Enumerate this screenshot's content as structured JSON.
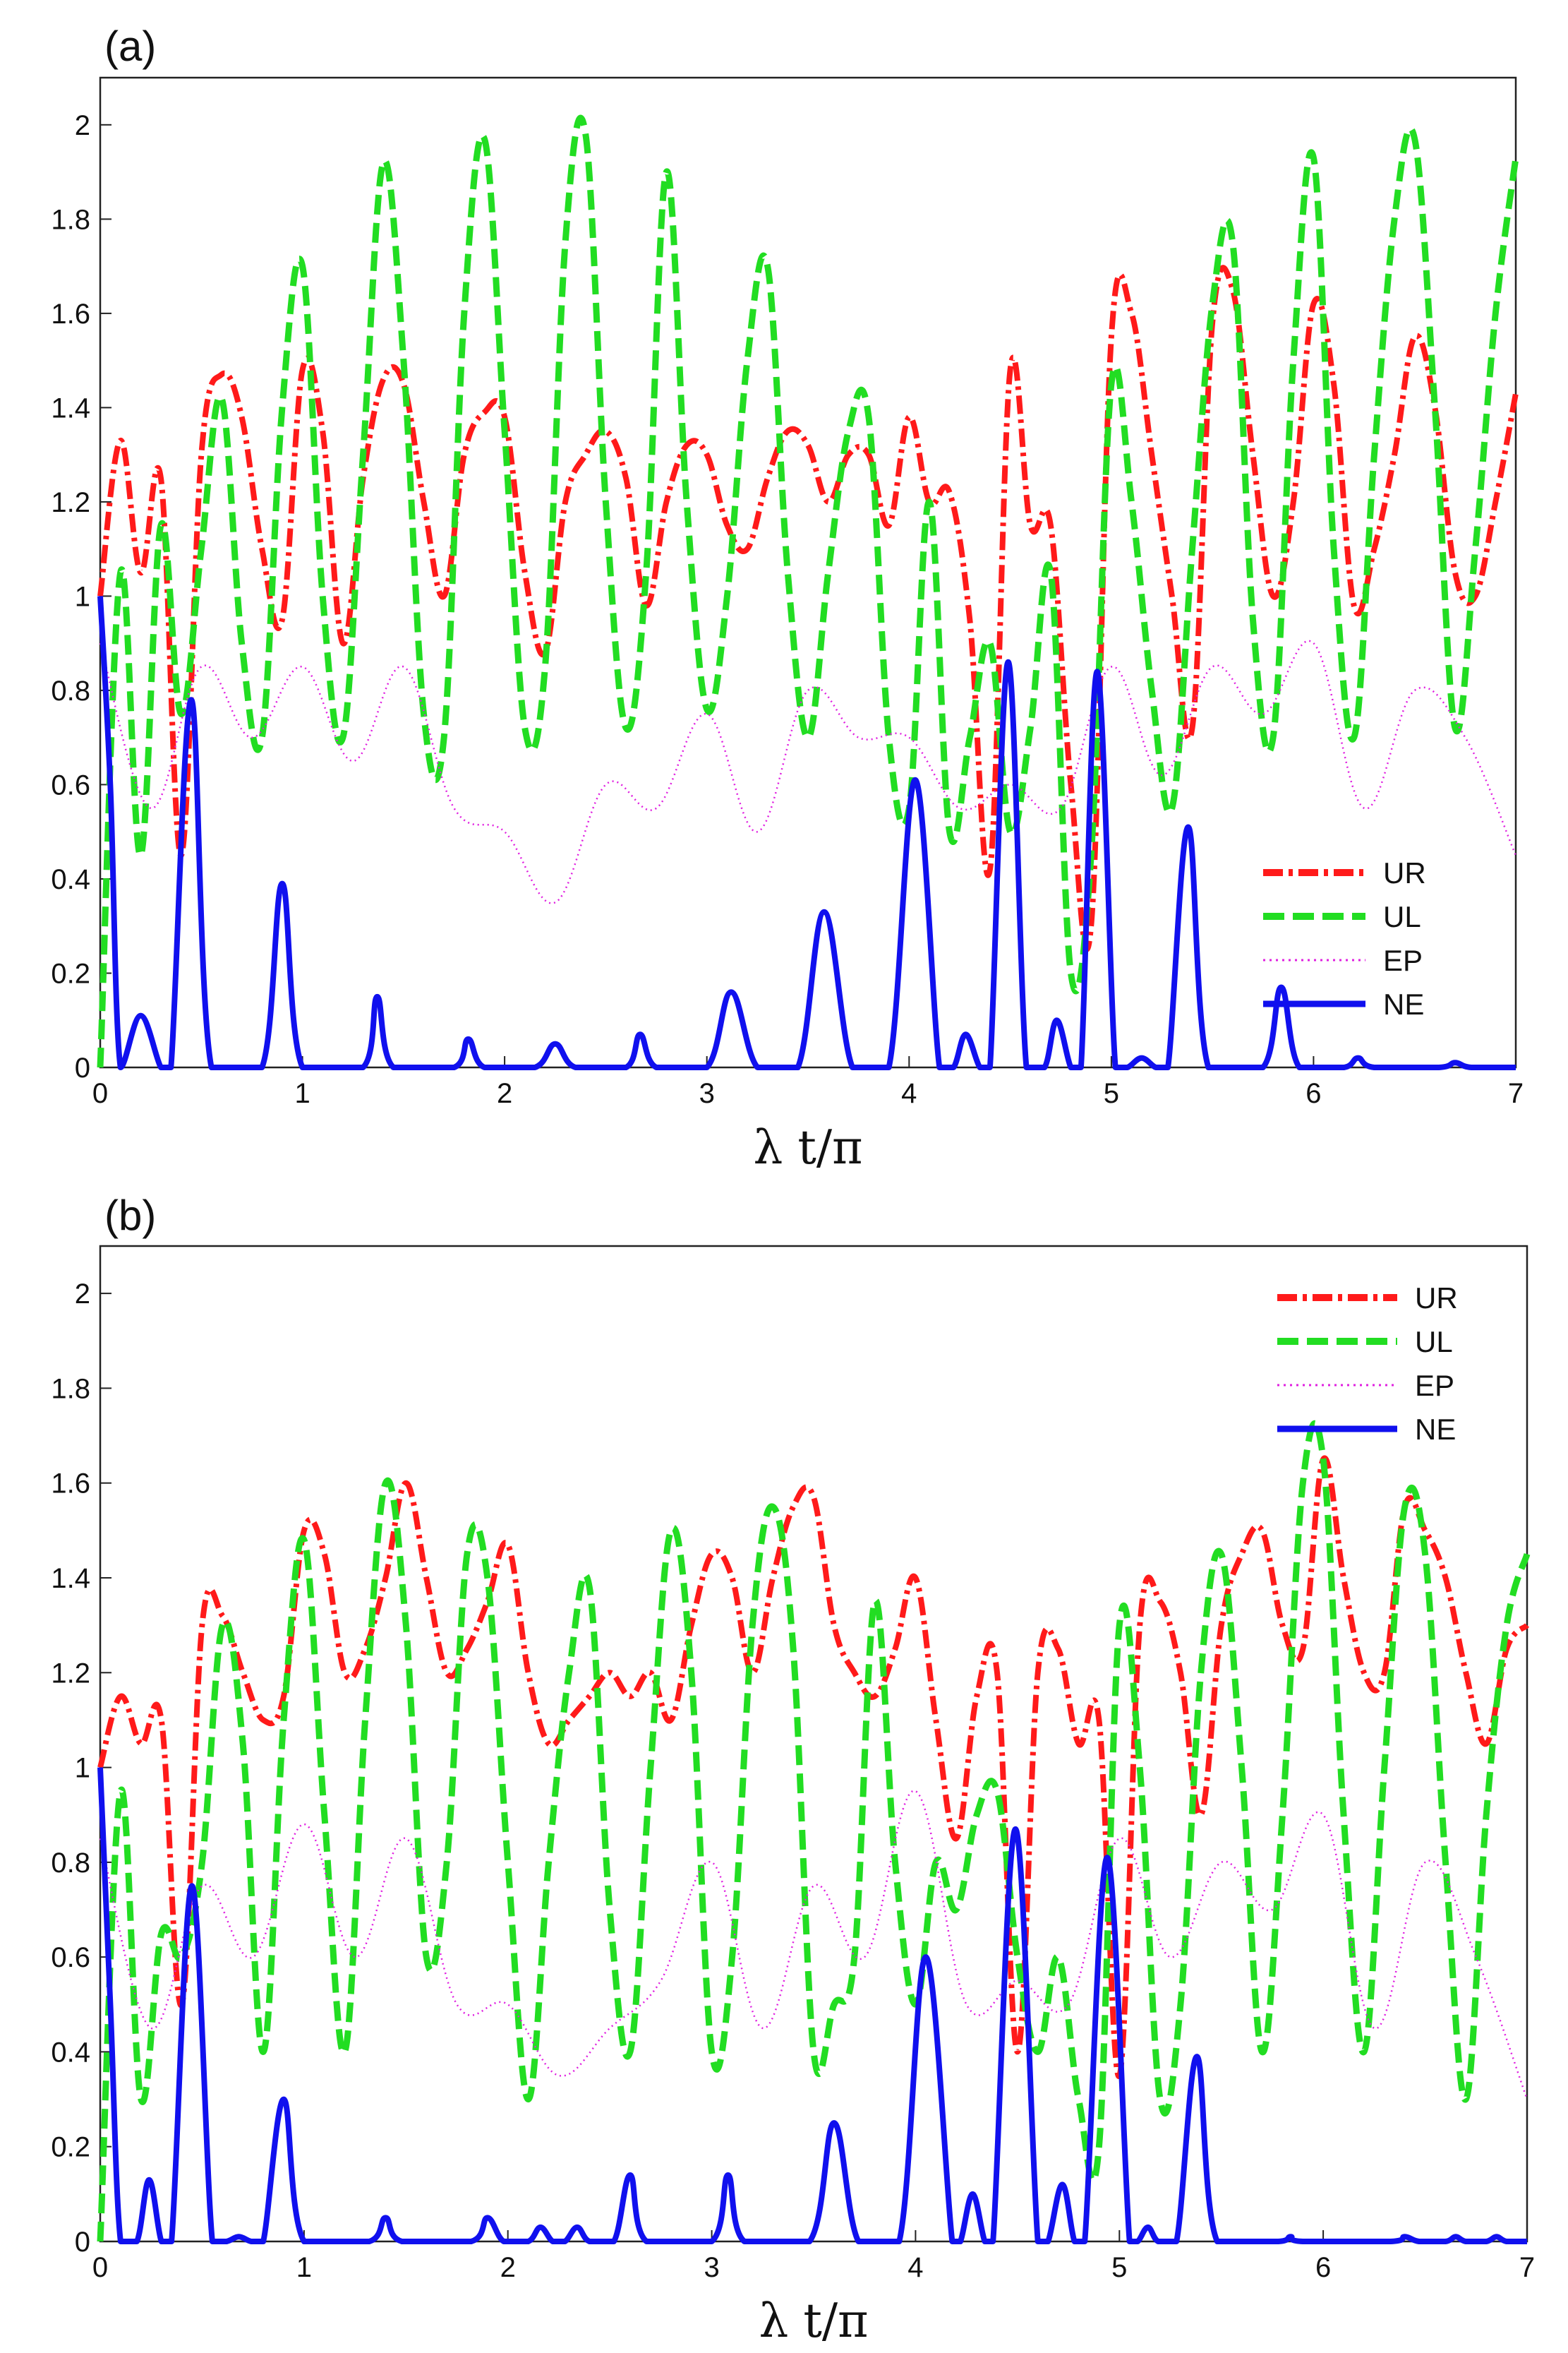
{
  "figure": {
    "xlabel": "λ t/π",
    "ylim": [
      0,
      2.1
    ],
    "xlim": [
      0,
      7
    ],
    "yticks": [
      "0",
      "0.2",
      "0.4",
      "0.6",
      "0.8",
      "1",
      "1.2",
      "1.4",
      "1.6",
      "1.8",
      "2"
    ],
    "xticks": [
      "0",
      "1",
      "2",
      "3",
      "4",
      "5",
      "6",
      "7"
    ]
  },
  "styles": {
    "UR": {
      "color": "#ff1a1a"
    },
    "UL": {
      "color": "#22dd22"
    },
    "EP": {
      "color": "#e020e0"
    },
    "NE": {
      "color": "#1010ee"
    }
  },
  "chart_data": [
    {
      "type": "line",
      "panel_label": "(a)",
      "title": "",
      "xlabel": "λ t/π",
      "ylabel": "",
      "xlim": [
        0,
        7
      ],
      "ylim": [
        0,
        2.1
      ],
      "legend": {
        "placement": "bottom-right",
        "entries": [
          "UR",
          "UL",
          "EP",
          "NE"
        ]
      },
      "series": [
        {
          "name": "UR",
          "style": "dash-dot",
          "x": [
            0,
            0.1,
            0.2,
            0.3,
            0.4,
            0.5,
            0.6,
            0.7,
            0.8,
            0.9,
            1,
            1.1,
            1.2,
            1.3,
            1.4,
            1.5,
            1.6,
            1.7,
            1.8,
            1.9,
            2,
            2.1,
            2.2,
            2.3,
            2.4,
            2.5,
            2.6,
            2.7,
            2.8,
            2.9,
            3,
            3.1,
            3.2,
            3.3,
            3.4,
            3.5,
            3.6,
            3.7,
            3.8,
            3.9,
            4,
            4.1,
            4.2,
            4.3,
            4.4,
            4.5,
            4.6,
            4.7,
            4.8,
            4.9,
            5,
            5.1,
            5.2,
            5.3,
            5.4,
            5.5,
            5.6,
            5.7,
            5.8,
            5.9,
            6,
            6.1,
            6.2,
            6.3,
            6.4,
            6.5,
            6.6,
            6.7,
            6.8,
            6.9,
            7
          ],
          "values": [
            1.0,
            1.33,
            1.05,
            1.25,
            0.45,
            1.3,
            1.47,
            1.38,
            1.1,
            0.95,
            1.48,
            1.35,
            0.9,
            1.25,
            1.46,
            1.45,
            1.2,
            1.0,
            1.3,
            1.39,
            1.38,
            1.05,
            0.88,
            1.2,
            1.3,
            1.35,
            1.25,
            0.98,
            1.2,
            1.32,
            1.3,
            1.15,
            1.1,
            1.25,
            1.35,
            1.32,
            1.2,
            1.3,
            1.3,
            1.15,
            1.38,
            1.2,
            1.22,
            0.95,
            0.42,
            1.48,
            1.15,
            1.15,
            0.6,
            0.3,
            1.55,
            1.6,
            1.3,
            1.0,
            0.72,
            1.58,
            1.65,
            1.3,
            1.0,
            1.2,
            1.62,
            1.45,
            0.98,
            1.1,
            1.3,
            1.55,
            1.4,
            1.05,
            1.0,
            1.2,
            1.43
          ]
        },
        {
          "name": "UL",
          "style": "dashed",
          "x": [
            0,
            0.1,
            0.2,
            0.3,
            0.4,
            0.5,
            0.6,
            0.7,
            0.8,
            0.9,
            1,
            1.1,
            1.2,
            1.3,
            1.4,
            1.5,
            1.6,
            1.7,
            1.8,
            1.9,
            2,
            2.1,
            2.2,
            2.3,
            2.4,
            2.5,
            2.6,
            2.7,
            2.8,
            2.9,
            3,
            3.1,
            3.2,
            3.3,
            3.4,
            3.5,
            3.6,
            3.7,
            3.8,
            3.9,
            4,
            4.1,
            4.2,
            4.3,
            4.4,
            4.5,
            4.6,
            4.7,
            4.8,
            4.9,
            5,
            5.1,
            5.2,
            5.3,
            5.4,
            5.5,
            5.6,
            5.7,
            5.8,
            5.9,
            6,
            6.1,
            6.2,
            6.3,
            6.4,
            6.5,
            6.6,
            6.7,
            6.8,
            6.9,
            7
          ],
          "values": [
            0.0,
            1.05,
            0.45,
            1.15,
            0.75,
            1.1,
            1.42,
            0.9,
            0.7,
            1.4,
            1.7,
            1.0,
            0.7,
            1.3,
            1.92,
            1.5,
            0.75,
            0.7,
            1.6,
            1.97,
            1.35,
            0.72,
            0.85,
            1.75,
            1.98,
            1.2,
            0.72,
            1.05,
            1.9,
            1.2,
            0.76,
            1.0,
            1.5,
            1.7,
            1.05,
            0.7,
            1.05,
            1.35,
            1.38,
            0.7,
            0.55,
            1.2,
            0.5,
            0.7,
            0.9,
            0.5,
            0.72,
            1.05,
            0.2,
            0.45,
            1.45,
            1.2,
            0.8,
            0.55,
            1.1,
            1.62,
            1.75,
            0.95,
            0.7,
            1.5,
            1.93,
            1.1,
            0.7,
            1.3,
            1.8,
            1.97,
            1.4,
            0.72,
            1.1,
            1.6,
            1.93
          ]
        },
        {
          "name": "EP",
          "style": "dotted",
          "x": [
            0,
            0.25,
            0.5,
            0.75,
            1,
            1.25,
            1.5,
            1.75,
            2,
            2.25,
            2.5,
            2.75,
            3,
            3.25,
            3.5,
            3.75,
            4,
            4.25,
            4.5,
            4.75,
            5,
            5.25,
            5.5,
            5.75,
            6,
            6.25,
            6.5,
            6.75,
            7
          ],
          "values": [
            0.9,
            0.55,
            0.85,
            0.7,
            0.85,
            0.65,
            0.85,
            0.55,
            0.5,
            0.35,
            0.6,
            0.55,
            0.75,
            0.5,
            0.8,
            0.7,
            0.7,
            0.55,
            0.6,
            0.55,
            0.85,
            0.62,
            0.85,
            0.75,
            0.9,
            0.55,
            0.8,
            0.7,
            0.45
          ]
        },
        {
          "name": "NE",
          "style": "solid",
          "x": [
            0,
            0.05,
            0.1,
            0.2,
            0.3,
            0.35,
            0.45,
            0.55,
            0.8,
            0.9,
            1.0,
            1.3,
            1.37,
            1.45,
            1.75,
            1.82,
            1.9,
            2.15,
            2.25,
            2.35,
            2.6,
            2.67,
            2.75,
            3.0,
            3.12,
            3.25,
            3.45,
            3.58,
            3.72,
            3.9,
            4.03,
            4.15,
            4.22,
            4.28,
            4.35,
            4.4,
            4.49,
            4.58,
            4.67,
            4.73,
            4.8,
            4.85,
            4.93,
            5.02,
            5.08,
            5.15,
            5.22,
            5.28,
            5.38,
            5.48,
            5.75,
            5.84,
            5.93,
            6.15,
            6.22,
            6.3,
            6.62,
            6.7,
            6.78,
            7
          ],
          "values": [
            1.0,
            0.6,
            0.0,
            0.11,
            0.0,
            0.0,
            0.78,
            0.0,
            0.0,
            0.39,
            0.0,
            0.0,
            0.15,
            0.0,
            0.0,
            0.06,
            0.0,
            0.0,
            0.05,
            0.0,
            0.0,
            0.07,
            0.0,
            0.0,
            0.16,
            0.0,
            0.0,
            0.33,
            0.0,
            0.0,
            0.61,
            0.0,
            0.0,
            0.07,
            0.0,
            0.0,
            0.86,
            0.0,
            0.0,
            0.1,
            0.0,
            0.0,
            0.84,
            0.0,
            0.0,
            0.02,
            0.0,
            0.0,
            0.51,
            0.0,
            0.0,
            0.17,
            0.0,
            0.0,
            0.02,
            0.0,
            0.0,
            0.01,
            0.0,
            0.0
          ]
        }
      ]
    },
    {
      "type": "line",
      "panel_label": "(b)",
      "title": "",
      "xlabel": "λ t/π",
      "ylabel": "",
      "xlim": [
        0,
        7
      ],
      "ylim": [
        0,
        2.1
      ],
      "legend": {
        "placement": "top-right",
        "entries": [
          "UR",
          "UL",
          "EP",
          "NE"
        ]
      },
      "series": [
        {
          "name": "UR",
          "style": "dash-dot",
          "x": [
            0,
            0.1,
            0.2,
            0.3,
            0.4,
            0.5,
            0.6,
            0.7,
            0.8,
            0.9,
            1,
            1.1,
            1.2,
            1.3,
            1.4,
            1.5,
            1.6,
            1.7,
            1.8,
            1.9,
            2,
            2.1,
            2.2,
            2.3,
            2.4,
            2.5,
            2.6,
            2.7,
            2.8,
            2.9,
            3,
            3.1,
            3.2,
            3.3,
            3.4,
            3.5,
            3.6,
            3.7,
            3.8,
            3.9,
            4,
            4.1,
            4.2,
            4.3,
            4.4,
            4.5,
            4.6,
            4.7,
            4.8,
            4.9,
            5,
            5.1,
            5.2,
            5.3,
            5.4,
            5.5,
            5.6,
            5.7,
            5.8,
            5.9,
            6,
            6.1,
            6.2,
            6.3,
            6.4,
            6.5,
            6.6,
            6.7,
            6.8,
            6.9,
            7
          ],
          "values": [
            1.0,
            1.15,
            1.05,
            1.1,
            0.5,
            1.3,
            1.32,
            1.2,
            1.1,
            1.15,
            1.5,
            1.45,
            1.2,
            1.25,
            1.4,
            1.6,
            1.4,
            1.2,
            1.25,
            1.35,
            1.47,
            1.2,
            1.05,
            1.1,
            1.15,
            1.2,
            1.15,
            1.2,
            1.1,
            1.3,
            1.45,
            1.4,
            1.2,
            1.4,
            1.55,
            1.57,
            1.3,
            1.2,
            1.15,
            1.25,
            1.4,
            1.1,
            0.85,
            1.15,
            1.2,
            0.4,
            1.2,
            1.25,
            1.05,
            1.1,
            0.35,
            1.3,
            1.35,
            1.2,
            0.9,
            1.3,
            1.45,
            1.5,
            1.3,
            1.25,
            1.65,
            1.4,
            1.2,
            1.2,
            1.55,
            1.5,
            1.4,
            1.2,
            1.05,
            1.25,
            1.3
          ]
        },
        {
          "name": "UL",
          "style": "dashed",
          "x": [
            0,
            0.1,
            0.2,
            0.3,
            0.4,
            0.5,
            0.6,
            0.7,
            0.8,
            0.9,
            1,
            1.1,
            1.2,
            1.3,
            1.4,
            1.5,
            1.6,
            1.7,
            1.8,
            1.9,
            2,
            2.1,
            2.2,
            2.3,
            2.4,
            2.5,
            2.6,
            2.7,
            2.8,
            2.9,
            3,
            3.1,
            3.2,
            3.3,
            3.4,
            3.5,
            3.6,
            3.7,
            3.8,
            3.9,
            4,
            4.1,
            4.2,
            4.3,
            4.4,
            4.5,
            4.6,
            4.7,
            4.8,
            4.9,
            5,
            5.1,
            5.2,
            5.3,
            5.4,
            5.5,
            5.6,
            5.7,
            5.8,
            5.9,
            6,
            6.1,
            6.2,
            6.3,
            6.4,
            6.5,
            6.6,
            6.7,
            6.8,
            6.9,
            7
          ],
          "values": [
            0.0,
            0.95,
            0.3,
            0.65,
            0.6,
            0.8,
            1.3,
            1.05,
            0.4,
            1.1,
            1.48,
            0.9,
            0.4,
            1.1,
            1.6,
            1.3,
            0.6,
            0.8,
            1.45,
            1.4,
            0.8,
            0.3,
            0.8,
            1.2,
            1.38,
            0.7,
            0.4,
            1.0,
            1.5,
            1.2,
            0.4,
            0.6,
            1.3,
            1.55,
            1.25,
            0.4,
            0.5,
            0.6,
            1.35,
            0.8,
            0.5,
            0.8,
            0.7,
            0.9,
            0.95,
            0.6,
            0.4,
            0.6,
            0.3,
            0.2,
            1.3,
            1.0,
            0.3,
            0.5,
            1.2,
            1.45,
            1.0,
            0.4,
            0.9,
            1.6,
            1.65,
            0.9,
            0.4,
            1.0,
            1.55,
            1.45,
            0.8,
            0.3,
            0.9,
            1.3,
            1.45
          ]
        },
        {
          "name": "EP",
          "style": "dotted",
          "x": [
            0,
            0.25,
            0.5,
            0.75,
            1,
            1.25,
            1.5,
            1.75,
            2,
            2.25,
            2.5,
            2.75,
            3,
            3.25,
            3.5,
            3.75,
            4,
            4.25,
            4.5,
            4.75,
            5,
            5.25,
            5.5,
            5.75,
            6,
            6.25,
            6.5,
            6.75,
            7
          ],
          "values": [
            0.85,
            0.45,
            0.75,
            0.6,
            0.88,
            0.6,
            0.85,
            0.5,
            0.5,
            0.35,
            0.45,
            0.55,
            0.8,
            0.45,
            0.75,
            0.6,
            0.95,
            0.5,
            0.55,
            0.5,
            0.85,
            0.6,
            0.8,
            0.7,
            0.9,
            0.45,
            0.8,
            0.6,
            0.3
          ]
        },
        {
          "name": "NE",
          "style": "solid",
          "x": [
            0,
            0.05,
            0.1,
            0.18,
            0.24,
            0.3,
            0.35,
            0.45,
            0.55,
            0.62,
            0.68,
            0.74,
            0.8,
            0.9,
            1.0,
            1.32,
            1.4,
            1.48,
            1.82,
            1.9,
            1.98,
            2.1,
            2.16,
            2.22,
            2.28,
            2.34,
            2.4,
            2.52,
            2.6,
            2.68,
            3.0,
            3.08,
            3.16,
            3.48,
            3.6,
            3.72,
            3.92,
            4.05,
            4.18,
            4.22,
            4.28,
            4.34,
            4.38,
            4.49,
            4.6,
            4.65,
            4.72,
            4.78,
            4.83,
            4.94,
            5.05,
            5.09,
            5.14,
            5.19,
            5.28,
            5.38,
            5.48,
            5.78,
            5.84,
            5.9,
            6.33,
            6.4,
            6.47,
            6.6,
            6.65,
            6.7,
            6.8,
            6.85,
            6.9,
            7
          ],
          "values": [
            1.0,
            0.5,
            0.0,
            0.0,
            0.13,
            0.0,
            0.0,
            0.75,
            0.0,
            0.0,
            0.01,
            0.0,
            0.0,
            0.3,
            0.0,
            0.0,
            0.05,
            0.0,
            0.0,
            0.05,
            0.0,
            0.0,
            0.03,
            0.0,
            0.0,
            0.03,
            0.0,
            0.0,
            0.14,
            0.0,
            0.0,
            0.14,
            0.0,
            0.0,
            0.25,
            0.0,
            0.0,
            0.6,
            0.0,
            0.0,
            0.1,
            0.0,
            0.0,
            0.87,
            0.0,
            0.0,
            0.12,
            0.0,
            0.0,
            0.81,
            0.0,
            0.0,
            0.03,
            0.0,
            0.0,
            0.39,
            0.0,
            0.0,
            0.01,
            0.0,
            0.0,
            0.01,
            0.0,
            0.0,
            0.01,
            0.0,
            0.0,
            0.01,
            0.0,
            0.0
          ]
        }
      ]
    }
  ]
}
